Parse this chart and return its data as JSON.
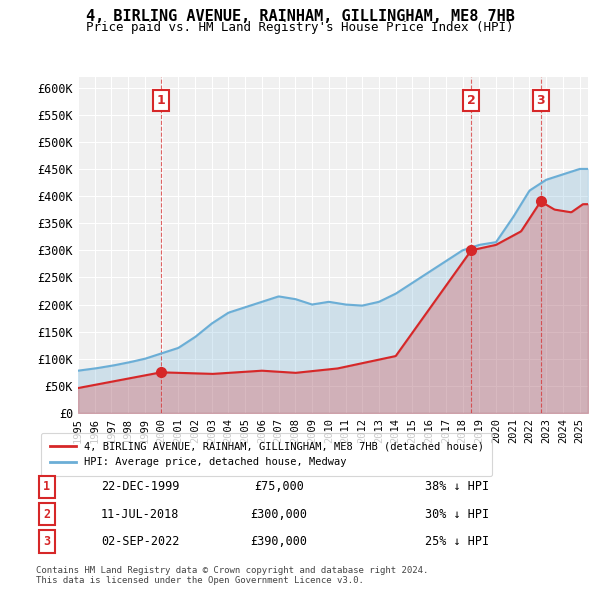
{
  "title": "4, BIRLING AVENUE, RAINHAM, GILLINGHAM, ME8 7HB",
  "subtitle": "Price paid vs. HM Land Registry's House Price Index (HPI)",
  "ylabel_ticks": [
    "£0",
    "£50K",
    "£100K",
    "£150K",
    "£200K",
    "£250K",
    "£300K",
    "£350K",
    "£400K",
    "£450K",
    "£500K",
    "£550K",
    "£600K"
  ],
  "ytick_values": [
    0,
    50000,
    100000,
    150000,
    200000,
    250000,
    300000,
    350000,
    400000,
    450000,
    500000,
    550000,
    600000
  ],
  "xlim_start": 1995.0,
  "xlim_end": 2025.5,
  "ylim_max": 620000,
  "hpi_color": "#6baed6",
  "price_color": "#d62728",
  "sale_marker_color": "#d62728",
  "annotation_box_color": "#d62728",
  "background_chart": "#f0f0f0",
  "background_fig": "#ffffff",
  "grid_color": "#ffffff",
  "sales": [
    {
      "num": 1,
      "date": "22-DEC-1999",
      "year": 1999.97,
      "price": 75000,
      "pct": "38%",
      "label": "1"
    },
    {
      "num": 2,
      "date": "11-JUL-2018",
      "year": 2018.52,
      "price": 300000,
      "pct": "30%",
      "label": "2"
    },
    {
      "num": 3,
      "date": "02-SEP-2022",
      "year": 2022.67,
      "price": 390000,
      "pct": "25%",
      "label": "3"
    }
  ],
  "legend_label_price": "4, BIRLING AVENUE, RAINHAM, GILLINGHAM, ME8 7HB (detached house)",
  "legend_label_hpi": "HPI: Average price, detached house, Medway",
  "footer1": "Contains HM Land Registry data © Crown copyright and database right 2024.",
  "footer2": "This data is licensed under the Open Government Licence v3.0.",
  "xtick_years": [
    1995,
    1996,
    1997,
    1998,
    1999,
    2000,
    2001,
    2002,
    2003,
    2004,
    2005,
    2006,
    2007,
    2008,
    2009,
    2010,
    2011,
    2012,
    2013,
    2014,
    2015,
    2016,
    2017,
    2018,
    2019,
    2020,
    2021,
    2022,
    2023,
    2024,
    2025
  ]
}
